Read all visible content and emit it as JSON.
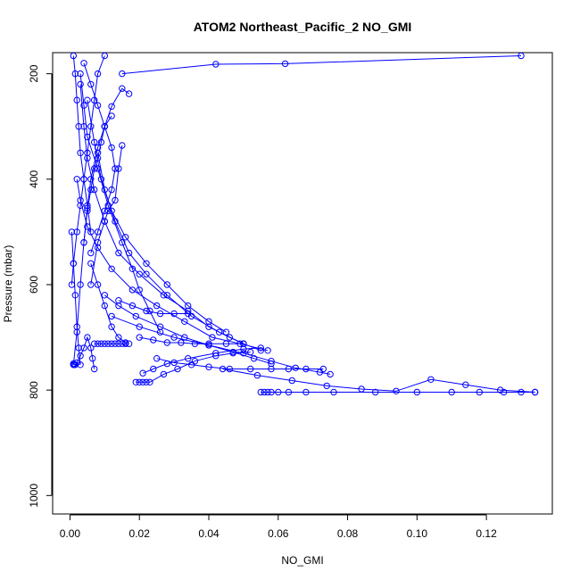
{
  "chart_data": {
    "type": "line",
    "title": "ATOM2 Northeast_Pacific_2 NO_GMI",
    "xlabel": "NO_GMI",
    "ylabel": "Pressure (mbar)",
    "xlim": [
      -0.005,
      0.139
    ],
    "ylim": [
      1035,
      160
    ],
    "y_reversed": true,
    "x_ticks": [
      0.0,
      0.02,
      0.04,
      0.06,
      0.08,
      0.1,
      0.12
    ],
    "x_tick_labels": [
      "0.00",
      "0.02",
      "0.04",
      "0.06",
      "0.08",
      "0.10",
      "0.12"
    ],
    "y_ticks": [
      200,
      400,
      600,
      800,
      1000
    ],
    "y_tick_labels": [
      "200",
      "400",
      "600",
      "800",
      "1000"
    ],
    "grid": false,
    "color": "#0000ff",
    "series": [
      {
        "x": [
          0.13,
          0.062,
          0.042,
          0.015
        ],
        "y": [
          166,
          181,
          182,
          200
        ]
      },
      {
        "x": [
          0.017,
          0.015,
          0.012,
          0.01,
          0.008,
          0.006,
          0.005,
          0.004,
          0.003,
          0.002,
          0.001
        ],
        "y": [
          238,
          228,
          262,
          300,
          340,
          400,
          455,
          520,
          600,
          690,
          752
        ]
      },
      {
        "x": [
          0.01,
          0.008,
          0.007,
          0.006,
          0.005,
          0.004,
          0.003,
          0.002,
          0.001,
          0.0005
        ],
        "y": [
          166,
          200,
          250,
          300,
          350,
          400,
          450,
          500,
          560,
          600
        ]
      },
      {
        "x": [
          0.003,
          0.004,
          0.005,
          0.008,
          0.011,
          0.015,
          0.018,
          0.02,
          0.023,
          0.026
        ],
        "y": [
          200,
          260,
          320,
          380,
          450,
          520,
          570,
          610,
          650,
          690
        ]
      },
      {
        "x": [
          0.012,
          0.01,
          0.009,
          0.008,
          0.007,
          0.006,
          0.005,
          0.004
        ],
        "y": [
          280,
          300,
          330,
          360,
          380,
          420,
          460,
          520
        ]
      },
      {
        "x": [
          0.015,
          0.014,
          0.013,
          0.011,
          0.01,
          0.008,
          0.006
        ],
        "y": [
          336,
          380,
          440,
          460,
          480,
          520,
          600
        ]
      },
      {
        "x": [
          0.004,
          0.006,
          0.008,
          0.01,
          0.012,
          0.013,
          0.012,
          0.01,
          0.008,
          0.006
        ],
        "y": [
          180,
          220,
          260,
          300,
          340,
          380,
          420,
          460,
          500,
          540
        ]
      },
      {
        "x": [
          0.003,
          0.004,
          0.005,
          0.007,
          0.01,
          0.014,
          0.02,
          0.027,
          0.034,
          0.04,
          0.046,
          0.05
        ],
        "y": [
          220,
          300,
          360,
          420,
          480,
          540,
          580,
          620,
          650,
          680,
          700,
          712
        ]
      },
      {
        "x": [
          0.005,
          0.007,
          0.009,
          0.012,
          0.016,
          0.022,
          0.028,
          0.034,
          0.04,
          0.045
        ],
        "y": [
          250,
          330,
          400,
          460,
          510,
          560,
          600,
          640,
          670,
          690
        ]
      },
      {
        "x": [
          0.008,
          0.01,
          0.013,
          0.017,
          0.022,
          0.028,
          0.035,
          0.043,
          0.05
        ],
        "y": [
          350,
          420,
          480,
          540,
          580,
          620,
          660,
          690,
          712
        ]
      },
      {
        "x": [
          0.002,
          0.003,
          0.005,
          0.008,
          0.012,
          0.018,
          0.025,
          0.033,
          0.041,
          0.049,
          0.057
        ],
        "y": [
          400,
          440,
          490,
          530,
          570,
          610,
          640,
          670,
          700,
          712,
          725
        ]
      },
      {
        "x": [
          0.006,
          0.008,
          0.01,
          0.012,
          0.014,
          0.016,
          0.017
        ],
        "y": [
          560,
          600,
          640,
          680,
          700,
          710,
          712
        ]
      },
      {
        "x": [
          0.007,
          0.008,
          0.009,
          0.01,
          0.011,
          0.012,
          0.013,
          0.014,
          0.015,
          0.016
        ],
        "y": [
          712,
          712,
          712,
          712,
          712,
          712,
          712,
          712,
          712,
          712
        ]
      },
      {
        "x": [
          0.01,
          0.014,
          0.019,
          0.026,
          0.033,
          0.04,
          0.047,
          0.053,
          0.058
        ],
        "y": [
          620,
          640,
          660,
          680,
          700,
          715,
          728,
          740,
          750
        ]
      },
      {
        "x": [
          0.012,
          0.02,
          0.03,
          0.04,
          0.05,
          0.058,
          0.065,
          0.072,
          0.075
        ],
        "y": [
          660,
          680,
          700,
          715,
          730,
          745,
          758,
          766,
          770
        ]
      },
      {
        "x": [
          0.014,
          0.018,
          0.022,
          0.026,
          0.03,
          0.034
        ],
        "y": [
          630,
          640,
          650,
          655,
          655,
          655
        ]
      },
      {
        "x": [
          0.02,
          0.024,
          0.028,
          0.032,
          0.036,
          0.04,
          0.045,
          0.05,
          0.055
        ],
        "y": [
          700,
          705,
          710,
          710,
          712,
          712,
          712,
          712,
          725
        ]
      },
      {
        "x": [
          0.019,
          0.02,
          0.021,
          0.022,
          0.023,
          0.027,
          0.031,
          0.036,
          0.042,
          0.047,
          0.052
        ],
        "y": [
          785,
          785,
          785,
          785,
          785,
          770,
          760,
          745,
          735,
          730,
          728
        ]
      },
      {
        "x": [
          0.021,
          0.024,
          0.028,
          0.034,
          0.042,
          0.05,
          0.055
        ],
        "y": [
          768,
          760,
          750,
          740,
          730,
          722,
          720
        ]
      },
      {
        "x": [
          0.025,
          0.03,
          0.035,
          0.04,
          0.046,
          0.052,
          0.058,
          0.063,
          0.068,
          0.073
        ],
        "y": [
          740,
          748,
          752,
          756,
          760,
          760,
          760,
          760,
          760,
          760
        ]
      },
      {
        "x": [
          0.055,
          0.056,
          0.057,
          0.058,
          0.06,
          0.063,
          0.068,
          0.076,
          0.088,
          0.1,
          0.11,
          0.118,
          0.125,
          0.13,
          0.134
        ],
        "y": [
          804,
          804,
          804,
          804,
          804,
          804,
          804,
          804,
          804,
          804,
          804,
          804,
          804,
          804,
          804
        ]
      },
      {
        "x": [
          0.044,
          0.054,
          0.064,
          0.074,
          0.084,
          0.094,
          0.104,
          0.114,
          0.124,
          0.134
        ],
        "y": [
          760,
          772,
          782,
          792,
          798,
          802,
          780,
          790,
          800,
          804
        ]
      },
      {
        "x": [
          0.001,
          0.0012,
          0.0015,
          0.002,
          0.003,
          0.004,
          0.005,
          0.006,
          0.0065,
          0.007
        ],
        "y": [
          750,
          752,
          752,
          748,
          735,
          720,
          700,
          720,
          740,
          760
        ]
      },
      {
        "x": [
          0.001,
          0.0015,
          0.002,
          0.0025,
          0.003,
          0.004,
          0.005,
          0.006
        ],
        "y": [
          166,
          200,
          250,
          300,
          350,
          400,
          450,
          500
        ]
      },
      {
        "x": [
          0.0005,
          0.001,
          0.0015,
          0.002,
          0.0025,
          0.003
        ],
        "y": [
          500,
          560,
          620,
          680,
          720,
          752
        ]
      }
    ]
  }
}
